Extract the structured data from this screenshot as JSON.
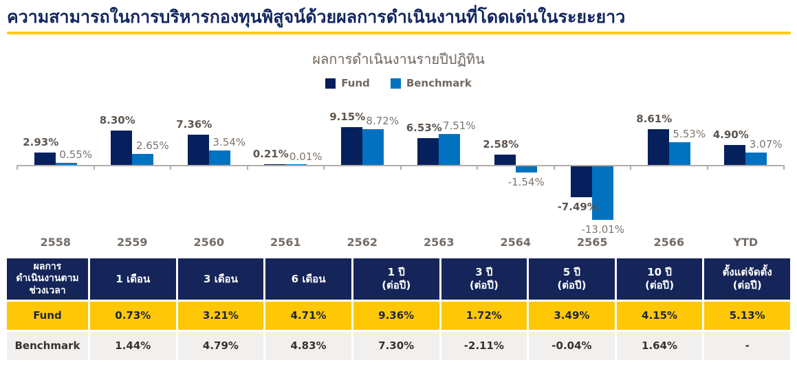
{
  "title": "ความสามารถในการบริหารกองทุนพิสูจน์ด้วยผลการดำเนินงานที่โดดเด่นในระยะยาว",
  "chart_data": {
    "type": "bar",
    "title": "ผลการดำเนินงานรายปีปฏิทิน",
    "categories": [
      "2558",
      "2559",
      "2560",
      "2561",
      "2562",
      "2563",
      "2564",
      "2565",
      "2566",
      "YTD"
    ],
    "series": [
      {
        "name": "Fund",
        "color": "#06205E",
        "values": [
          2.93,
          8.3,
          7.36,
          0.21,
          9.15,
          6.53,
          2.58,
          -7.49,
          8.61,
          4.9
        ]
      },
      {
        "name": "Benchmark",
        "color": "#0072BF",
        "values": [
          0.55,
          2.65,
          3.54,
          0.01,
          8.72,
          7.51,
          -1.54,
          -13.01,
          5.53,
          3.07
        ]
      }
    ],
    "value_format": "percent_2dp",
    "legend_position": "top-center",
    "grid": false,
    "baseline": 0,
    "ylim": [
      -14,
      10
    ]
  },
  "table": {
    "header": [
      {
        "lines": [
          "ผลการ",
          "ดำเนินงานตาม",
          "ช่วงเวลา"
        ]
      },
      {
        "lines": [
          "1 เดือน"
        ]
      },
      {
        "lines": [
          "3 เดือน"
        ]
      },
      {
        "lines": [
          "6 เดือน"
        ]
      },
      {
        "lines": [
          "1 ปี",
          "(ต่อปี)"
        ]
      },
      {
        "lines": [
          "3 ปี",
          "(ต่อปี)"
        ]
      },
      {
        "lines": [
          "5 ปี",
          "(ต่อปี)"
        ]
      },
      {
        "lines": [
          "10 ปี",
          "(ต่อปี)"
        ]
      },
      {
        "lines": [
          "ตั้งแต่จัดตั้ง",
          "(ต่อปี)"
        ]
      }
    ],
    "rows": [
      {
        "label": "Fund",
        "values": [
          "0.73%",
          "3.21%",
          "4.71%",
          "9.36%",
          "1.72%",
          "3.49%",
          "4.15%",
          "5.13%"
        ]
      },
      {
        "label": "Benchmark",
        "values": [
          "1.44%",
          "4.79%",
          "4.83%",
          "7.30%",
          "-2.11%",
          "-0.04%",
          "1.64%",
          "-"
        ]
      }
    ]
  },
  "colors": {
    "title": "#12265E",
    "accent_underline": "#FFC807",
    "fund": "#06205E",
    "benchmark": "#0072BF",
    "axis": "#B3ACA8",
    "fund_label": "#5D554E",
    "benchmark_label": "#7C746E",
    "category_label": "#756C66",
    "chart_title": "#6F6660",
    "table_header_bg": "#152559",
    "table_fund_bg": "#FFC807",
    "table_benchmark_bg": "#F2F0EE"
  }
}
